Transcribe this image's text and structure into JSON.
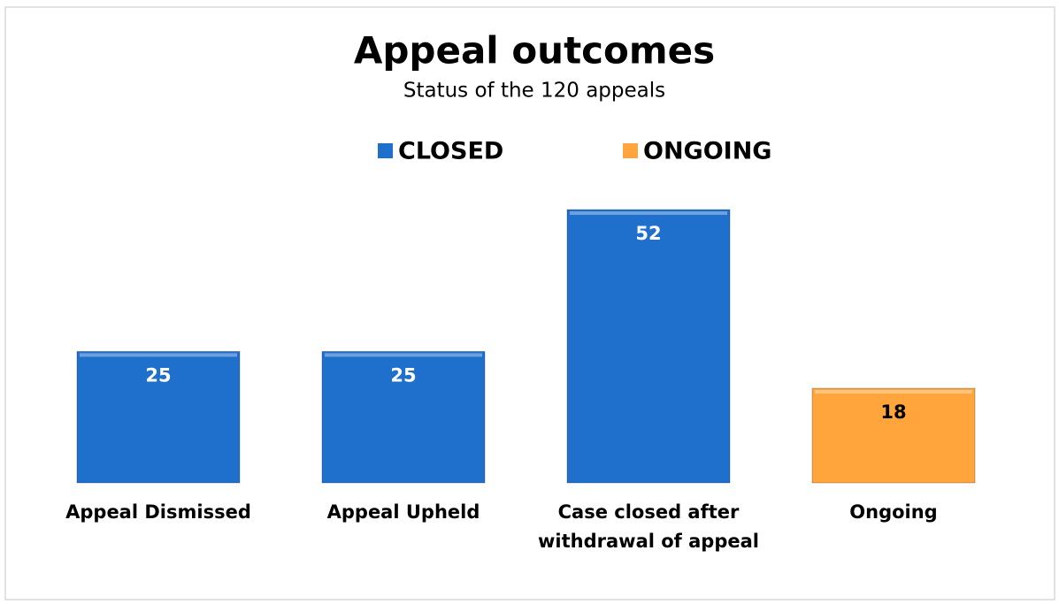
{
  "chart_data": {
    "type": "bar",
    "title": "Appeal outcomes",
    "subtitle": "Status of the 120 appeals",
    "categories": [
      "Appeal Dismissed",
      "Appeal Upheld",
      "Case closed after withdrawal of appeal",
      "Ongoing"
    ],
    "series": [
      {
        "name": "CLOSED",
        "color": "#1f6fcc",
        "values": [
          25,
          25,
          52,
          null
        ]
      },
      {
        "name": "ONGOING",
        "color": "#ffa53b",
        "values": [
          null,
          null,
          null,
          18
        ]
      }
    ],
    "legend": "top"
  }
}
